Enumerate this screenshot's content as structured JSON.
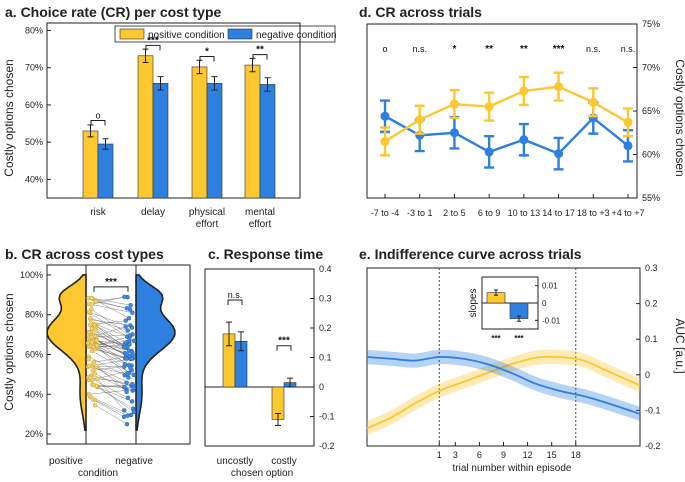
{
  "colors": {
    "positive": "#FCC72F",
    "negative": "#2D7FE0",
    "positive_dark": "#B8901A",
    "negative_dark": "#1A4E95",
    "grey": "#777777"
  },
  "chart_data": [
    {
      "id": "a",
      "type": "bar",
      "title": "a. Choice rate (CR) per cost type",
      "ylabel": "Costly options chosen",
      "ylim": [
        35,
        82
      ],
      "yticks": [
        {
          "v": 40,
          "label": "40%"
        },
        {
          "v": 50,
          "label": "50%"
        },
        {
          "v": 60,
          "label": "60%"
        },
        {
          "v": 70,
          "label": "70%"
        },
        {
          "v": 80,
          "label": "80%"
        }
      ],
      "legend": [
        "positive condition",
        "negative condition"
      ],
      "categories": [
        [
          "risk"
        ],
        [
          "delay"
        ],
        [
          "physical",
          "effort"
        ],
        [
          "mental",
          "effort"
        ]
      ],
      "series": [
        {
          "name": "positive condition",
          "values": [
            53,
            73.2,
            70.2,
            70.7
          ],
          "err": [
            1.6,
            1.8,
            1.8,
            1.8
          ]
        },
        {
          "name": "negative condition",
          "values": [
            49.5,
            65.8,
            65.8,
            65.5
          ],
          "err": [
            1.4,
            1.8,
            1.8,
            1.8
          ]
        }
      ],
      "significance": [
        "o",
        "***",
        "*",
        "**"
      ]
    },
    {
      "id": "b",
      "type": "violin",
      "title": "b. CR across cost types",
      "ylabel": "Costly options chosen",
      "xlabel": "condition",
      "ylim": [
        15,
        105
      ],
      "yticks": [
        {
          "v": 20,
          "label": "20%"
        },
        {
          "v": 40,
          "label": "40%"
        },
        {
          "v": 60,
          "label": "60%"
        },
        {
          "v": 80,
          "label": "80%"
        },
        {
          "v": 100,
          "label": "100%"
        }
      ],
      "categories": [
        "positive",
        "negative"
      ],
      "significance": "***"
    },
    {
      "id": "c",
      "type": "bar",
      "title": "c. Response time",
      "xlabel": "chosen option",
      "ylim": [
        -0.2,
        0.4
      ],
      "yticks": [
        {
          "v": 0.4,
          "label": "0.4"
        },
        {
          "v": 0.3,
          "label": "0.3"
        },
        {
          "v": 0.2,
          "label": "0.2"
        },
        {
          "v": 0.1,
          "label": "0.1"
        },
        {
          "v": 0,
          "label": "0"
        },
        {
          "v": -0.1,
          "label": "-0.1"
        },
        {
          "v": -0.2,
          "label": "-0.2"
        }
      ],
      "categories": [
        "uncostly",
        "costly"
      ],
      "series": [
        {
          "name": "positive condition",
          "values": [
            0.18,
            -0.11
          ],
          "err": [
            0.04,
            0.02
          ]
        },
        {
          "name": "negative condition",
          "values": [
            0.155,
            0.015
          ],
          "err": [
            0.032,
            0.015
          ]
        }
      ],
      "significance": [
        "n.s.",
        "***"
      ]
    },
    {
      "id": "d",
      "type": "line",
      "title": "d. CR across trials",
      "ylabel": "Costly options chosen",
      "ylim": [
        55,
        75
      ],
      "yticks": [
        {
          "v": 55,
          "label": "55%"
        },
        {
          "v": 60,
          "label": "60%"
        },
        {
          "v": 65,
          "label": "65%"
        },
        {
          "v": 70,
          "label": "70%"
        },
        {
          "v": 75,
          "label": "75%"
        }
      ],
      "categories": [
        "-7 to -4",
        "-3 to 1",
        "2 to 5",
        "6 to 9",
        "10 to 13",
        "14 to 17",
        "18 to +3",
        "+4 to +7"
      ],
      "series": [
        {
          "name": "positive condition",
          "values": [
            61.5,
            64.0,
            65.8,
            65.5,
            67.3,
            67.8,
            66.0,
            63.7
          ],
          "err": [
            1.6,
            1.6,
            1.6,
            1.6,
            1.6,
            1.6,
            1.6,
            1.6
          ]
        },
        {
          "name": "negative condition",
          "values": [
            64.4,
            62.2,
            62.5,
            60.3,
            61.7,
            60.1,
            64.2,
            61.0
          ],
          "err": [
            1.8,
            1.8,
            1.8,
            1.8,
            1.8,
            1.8,
            1.8,
            1.8
          ]
        }
      ],
      "significance": [
        "o",
        "n.s.",
        "*",
        "**",
        "**",
        "***",
        "n.s.",
        "n.s."
      ]
    },
    {
      "id": "e",
      "type": "line",
      "title": "e. Indifference curve across trials",
      "xlabel": "trial number within episode",
      "ylabel": "AUC [a.u.]",
      "ylim": [
        -0.2,
        0.3
      ],
      "yticks": [
        {
          "v": 0.3,
          "label": "0.3"
        },
        {
          "v": 0.2,
          "label": "0.2"
        },
        {
          "v": 0.1,
          "label": "0.1"
        },
        {
          "v": 0,
          "label": "0"
        },
        {
          "v": -0.1,
          "label": "-0.1"
        },
        {
          "v": -0.2,
          "label": "-0.2"
        }
      ],
      "xlim": [
        -8,
        26
      ],
      "xticks": [
        1,
        3,
        6,
        9,
        12,
        15,
        18
      ],
      "vlines": [
        1,
        18
      ],
      "x": [
        -8,
        -5,
        -2,
        1,
        4,
        7,
        10,
        13,
        16,
        19,
        22,
        26
      ],
      "series": [
        {
          "name": "positive condition",
          "values": [
            -0.15,
            -0.12,
            -0.08,
            -0.045,
            -0.02,
            0.005,
            0.03,
            0.048,
            0.05,
            0.04,
            0.01,
            -0.03
          ],
          "band": 0.02
        },
        {
          "name": "negative condition",
          "values": [
            0.05,
            0.045,
            0.04,
            0.05,
            0.045,
            0.03,
            0.005,
            -0.025,
            -0.045,
            -0.06,
            -0.08,
            -0.11
          ],
          "band": 0.02
        }
      ],
      "inset": {
        "ylabel": "slopes",
        "ylim": [
          -0.015,
          0.015
        ],
        "yticks": [
          {
            "v": 0.01,
            "label": "0.01"
          },
          {
            "v": 0,
            "label": "0"
          },
          {
            "v": -0.01,
            "label": "-0.01"
          }
        ],
        "values": [
          0.006,
          -0.009
        ],
        "err": [
          0.0015,
          0.0015
        ],
        "significance": [
          "***",
          "***"
        ]
      }
    }
  ]
}
